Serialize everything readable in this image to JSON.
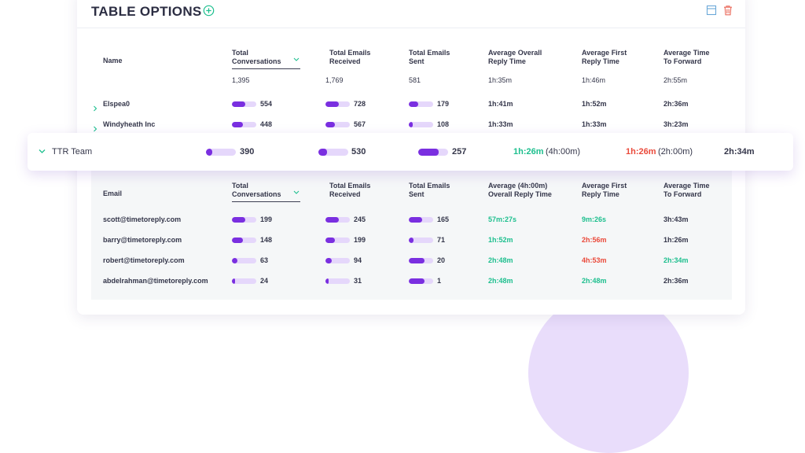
{
  "header": {
    "title": "TABLE OPTIONS",
    "add_icon": "add-circle-icon",
    "icons": [
      "layout-icon",
      "trash-icon"
    ]
  },
  "colors": {
    "accent": "#7a2fe0",
    "track": "#e5d7fb",
    "good": "#1dbf8e",
    "bad": "#ea4a3b",
    "add": "#1dbf8e",
    "trash": "#ea6a5b",
    "layout": "#6aa8d8"
  },
  "main_table": {
    "columns": [
      "Name",
      "Total\nConversations",
      "Total Emails\nReceived",
      "Total Emails\nSent",
      "Average Overall\nReply Time",
      "Average First\nReply Time",
      "Average Time\nTo Forward"
    ],
    "totals": [
      "1,395",
      "1,769",
      "581",
      "1h:35m",
      "1h:46m",
      "2h:55m"
    ],
    "rows": [
      {
        "name": "Elspea0",
        "conversations": "554",
        "received": "728",
        "sent": "179",
        "reply": "1h:41m",
        "first_reply": "1h:52m",
        "forward": "2h:36m",
        "bars": [
          0.55,
          0.55,
          0.4
        ]
      },
      {
        "name": "Windyheath Inc",
        "conversations": "448",
        "received": "567",
        "sent": "108",
        "reply": "1h:33m",
        "first_reply": "1h:33m",
        "forward": "3h:23m",
        "bars": [
          0.45,
          0.38,
          0.15
        ]
      }
    ]
  },
  "team_row": {
    "name": "TTR Team",
    "conversations": "390",
    "received": "530",
    "sent": "257",
    "reply": "1h:26m",
    "reply_target": "(4h:00m)",
    "first_reply": "1h:26m",
    "first_target": "(2h:00m)",
    "forward": "2h:34m",
    "bars": [
      0.22,
      0.28,
      0.68
    ]
  },
  "sub_table": {
    "columns": [
      "Email",
      "Total\nConversations",
      "Total Emails\nReceived",
      "Total Emails\nSent",
      "Average (4h:00m)\nOverall Reply Time",
      "Average First\nReply Time",
      "Average Time\nTo Forward"
    ],
    "rows": [
      {
        "email": "scott@timetoreply.com",
        "conversations": "199",
        "received": "245",
        "sent": "165",
        "reply": "57m:27s",
        "first_reply": "9m:26s",
        "forward": "3h:43m",
        "reply_color": "good",
        "first_color": "good",
        "forward_color": "normal",
        "bars": [
          0.55,
          0.55,
          0.55
        ]
      },
      {
        "email": "barry@timetoreply.com",
        "conversations": "148",
        "received": "199",
        "sent": "71",
        "reply": "1h:52m",
        "first_reply": "2h:56m",
        "forward": "1h:26m",
        "reply_color": "good",
        "first_color": "bad",
        "forward_color": "normal",
        "bars": [
          0.45,
          0.38,
          0.18
        ]
      },
      {
        "email": "robert@timetoreply.com",
        "conversations": "63",
        "received": "94",
        "sent": "20",
        "reply": "2h:48m",
        "first_reply": "4h:53m",
        "forward": "2h:34m",
        "reply_color": "good",
        "first_color": "bad",
        "forward_color": "good",
        "bars": [
          0.22,
          0.25,
          0.65
        ]
      },
      {
        "email": "abdelrahman@timetoreply.com",
        "conversations": "24",
        "received": "31",
        "sent": "1",
        "reply": "2h:48m",
        "first_reply": "2h:48m",
        "forward": "2h:36m",
        "reply_color": "good",
        "first_color": "good",
        "forward_color": "normal",
        "bars": [
          0.12,
          0.12,
          0.65
        ]
      }
    ]
  }
}
